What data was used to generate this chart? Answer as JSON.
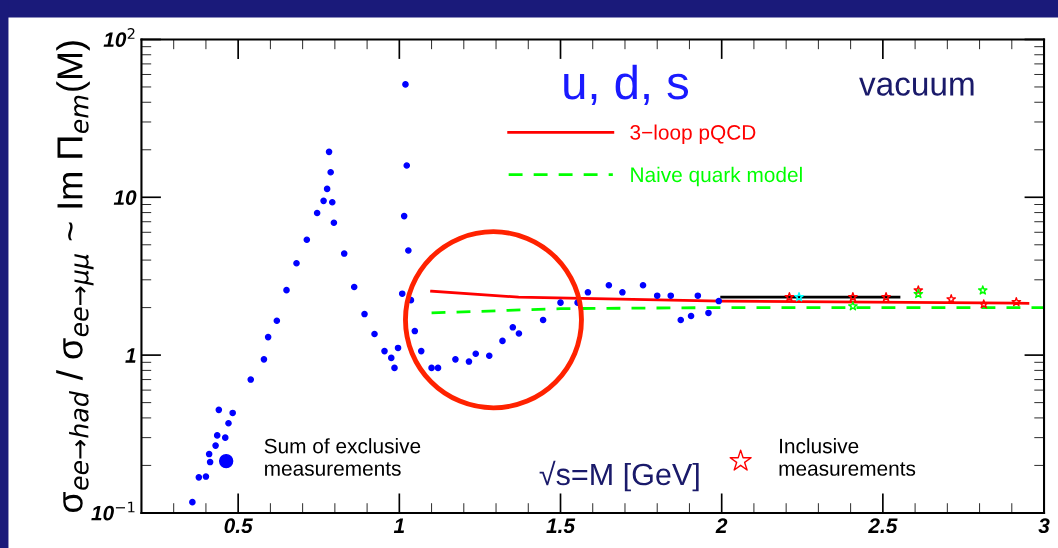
{
  "chart_data": {
    "type": "scatter",
    "xlabel": "√s=M [GeV]",
    "ylabel": "σ$_{ee→had}$ / σ$_{ee→μμ}$ ~ Im Π$_{em}$(M)",
    "annotations": [
      "u, d, s",
      "vacuum"
    ],
    "xlim": [
      0.2,
      3
    ],
    "xticks": [
      0.5,
      1,
      1.5,
      2,
      2.5,
      3
    ],
    "ylim": [
      0.1,
      100
    ],
    "yticks": [
      {
        "value": 0.1,
        "label": "10$^{−1}$"
      },
      1,
      10,
      {
        "value": 100,
        "label": "10$^{2}$"
      }
    ],
    "log": "y",
    "grid": false,
    "legend": "bottom",
    "series": [
      {
        "name": "Sum of exclusive measurements",
        "color": "#0000ff",
        "marker": "circle",
        "x": [
          0.358,
          0.378,
          0.4,
          0.41,
          0.413,
          0.43,
          0.435,
          0.44,
          0.46,
          0.47,
          0.483,
          0.539,
          0.58,
          0.593,
          0.62,
          0.65,
          0.681,
          0.713,
          0.745,
          0.765,
          0.776,
          0.782,
          0.787,
          0.792,
          0.797,
          0.829,
          0.86,
          0.892,
          0.923,
          0.954,
          0.975,
          0.985,
          0.996,
          1.009,
          1.015,
          1.019,
          1.023,
          1.028,
          1.036,
          1.048,
          1.068,
          1.1,
          1.12,
          1.174,
          1.216,
          1.237,
          1.279,
          1.32,
          1.352,
          1.371,
          1.446,
          1.5,
          1.553,
          1.585,
          1.65,
          1.692,
          1.756,
          1.8,
          1.842,
          1.873,
          1.905,
          1.926,
          1.959,
          1.991
        ],
        "values": [
          0.117,
          0.168,
          0.17,
          0.236,
          0.21,
          0.267,
          0.31,
          0.45,
          0.3,
          0.37,
          0.43,
          0.7,
          0.94,
          1.3,
          1.65,
          2.58,
          3.82,
          5.38,
          7.95,
          9.49,
          11.3,
          19.4,
          14.4,
          9.3,
          6.9,
          4.4,
          2.7,
          1.82,
          1.36,
          1.06,
          0.96,
          0.83,
          1.11,
          2.45,
          7.6,
          51.9,
          15.9,
          4.6,
          2.23,
          1.42,
          1.06,
          0.83,
          0.83,
          0.94,
          0.91,
          1.02,
          0.99,
          1.23,
          1.5,
          1.37,
          1.67,
          2.15,
          2.15,
          2.5,
          2.77,
          2.5,
          2.77,
          2.38,
          2.38,
          1.67,
          1.77,
          2.38,
          1.85,
          2.2
        ]
      },
      {
        "name": "Inclusive measurements",
        "color": "#ff0000",
        "marker": "star",
        "x": [
          2.21,
          2.407,
          2.51,
          2.61,
          2.712,
          2.813,
          2.914
        ],
        "values": [
          2.33,
          2.33,
          2.33,
          2.57,
          2.26,
          2.1,
          2.17
        ]
      },
      {
        "color": "#00ff00",
        "marker": "star",
        "x": [
          2.407,
          2.61,
          2.81
        ],
        "values": [
          2.04,
          2.44,
          2.57
        ]
      },
      {
        "color": "#00ffff",
        "marker": "star",
        "x": [
          2.24
        ],
        "values": [
          2.33
        ]
      },
      {
        "type": "line",
        "color": "#000000",
        "line_style": "solid",
        "x": [
          2.0,
          2.55
        ],
        "values": [
          2.33,
          2.33
        ]
      },
      {
        "name": "3−loop pQCD",
        "type": "line",
        "color": "#ff0000",
        "line_style": "solid",
        "x": [
          1.1,
          1.37,
          2.0,
          2.95
        ],
        "values": [
          2.54,
          2.33,
          2.2,
          2.13
        ]
      },
      {
        "name": "Naive quark model",
        "type": "line",
        "color": "#00ff00",
        "line_style": "dashed",
        "x": [
          1.1,
          1.5,
          2.0,
          3.0
        ],
        "values": [
          1.85,
          1.97,
          2.0,
          2.0
        ]
      }
    ]
  }
}
